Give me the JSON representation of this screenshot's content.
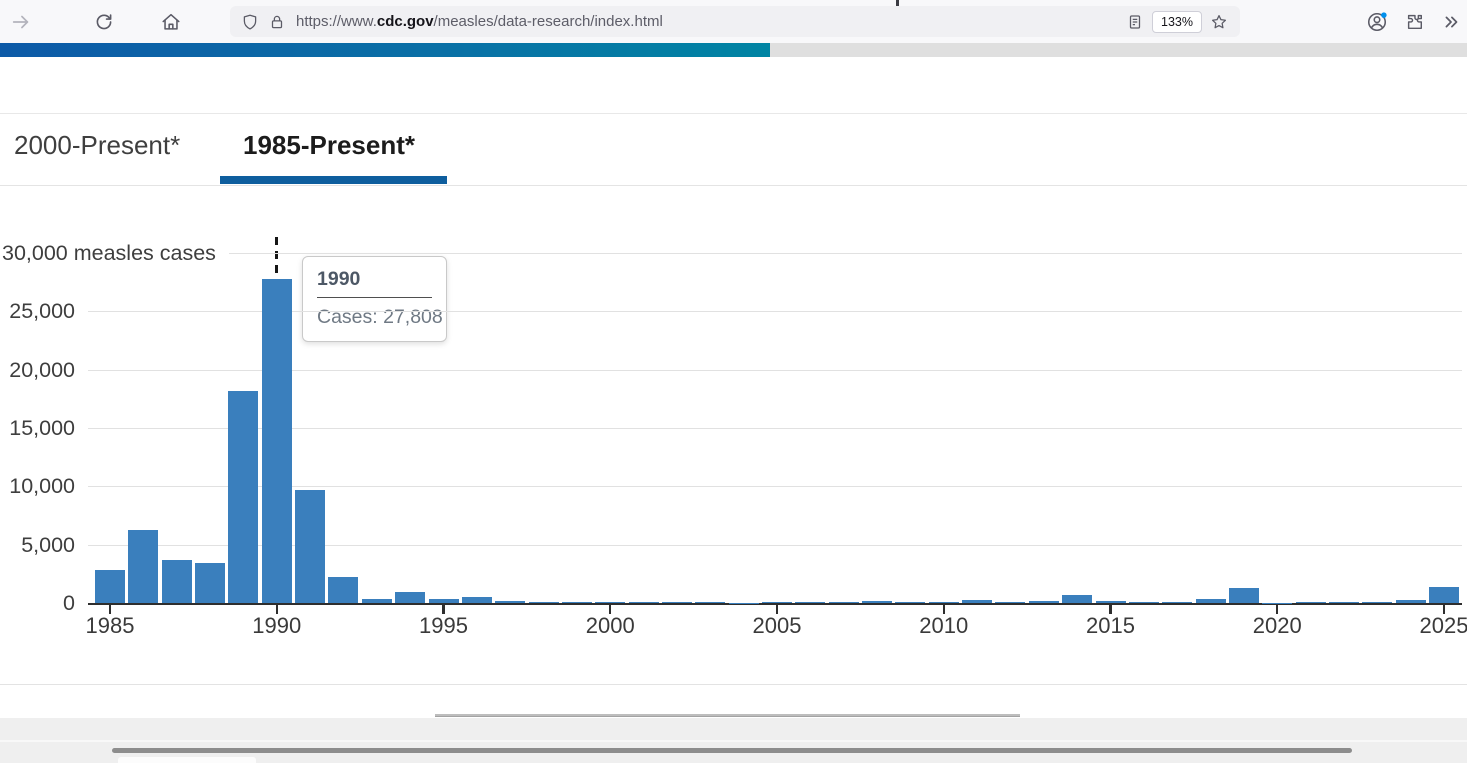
{
  "browser": {
    "url_prefix": "https://www.",
    "url_domain": "cdc.gov",
    "url_path": "/measles/data-research/index.html",
    "zoom_level": "133%",
    "icons": [
      "forward-icon",
      "reload-icon",
      "home-icon",
      "shield-icon",
      "lock-icon",
      "reader-view-icon",
      "bookmark-star-icon",
      "account-icon",
      "extensions-puzzle-icon",
      "overflow-chevrons-icon"
    ],
    "notification_dot_color": "#0090ed"
  },
  "page": {
    "tabs": [
      {
        "label": "2000-Present*",
        "active": false
      },
      {
        "label": "1985-Present*",
        "active": true
      }
    ],
    "accent_color": "#0e5e9e",
    "banner_gradient": [
      "#0d5aa7",
      "#0084a3"
    ]
  },
  "tooltip": {
    "title": "1990",
    "cases_label": "Cases: 27,808"
  },
  "chart_data": {
    "type": "bar",
    "title": "",
    "xlabel": "",
    "ylabel": "measles cases",
    "top_axis_label": "30,000 measles cases",
    "bar_color": "#3a7fbd",
    "grid": true,
    "ylim": [
      0,
      30000
    ],
    "highlight_year": 1990,
    "highlight_value": 27808,
    "x": [
      1985,
      1986,
      1987,
      1988,
      1989,
      1990,
      1991,
      1992,
      1993,
      1994,
      1995,
      1996,
      1997,
      1998,
      1999,
      2000,
      2001,
      2002,
      2003,
      2004,
      2005,
      2006,
      2007,
      2008,
      2009,
      2010,
      2011,
      2012,
      2013,
      2014,
      2015,
      2016,
      2017,
      2018,
      2019,
      2020,
      2021,
      2022,
      2023,
      2024,
      2025
    ],
    "values": [
      2822,
      6282,
      3655,
      3396,
      18193,
      27808,
      9643,
      2237,
      312,
      963,
      309,
      508,
      138,
      89,
      100,
      86,
      116,
      44,
      56,
      37,
      66,
      55,
      43,
      140,
      71,
      63,
      220,
      55,
      187,
      667,
      188,
      86,
      120,
      381,
      1274,
      13,
      49,
      121,
      59,
      285,
      1356
    ],
    "y_ticks": [
      {
        "value": 0,
        "label": "0"
      },
      {
        "value": 5000,
        "label": "5,000"
      },
      {
        "value": 10000,
        "label": "10,000"
      },
      {
        "value": 15000,
        "label": "15,000"
      },
      {
        "value": 20000,
        "label": "20,000"
      },
      {
        "value": 25000,
        "label": "25,000"
      },
      {
        "value": 30000,
        "label": "30,000 measles cases"
      }
    ],
    "x_ticks": [
      1985,
      1990,
      1995,
      2000,
      2005,
      2010,
      2015,
      2020,
      2025
    ]
  }
}
